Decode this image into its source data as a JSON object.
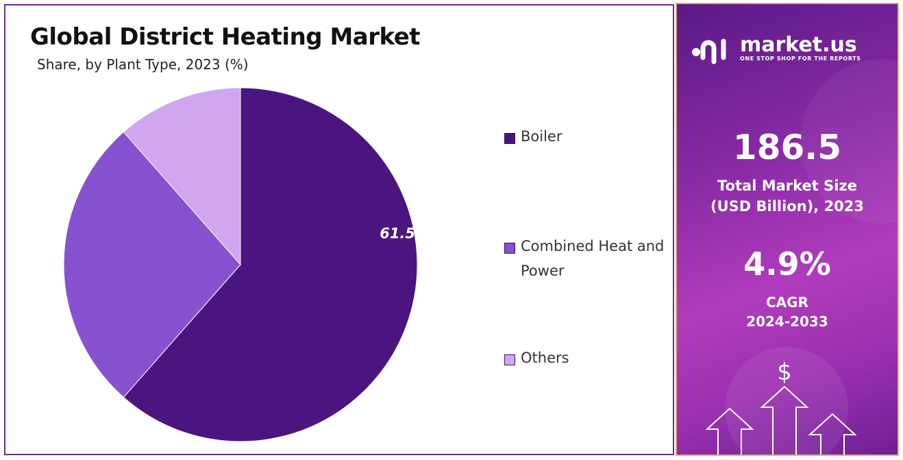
{
  "title": "Global District Heating Market",
  "subtitle": "Share, by Plant Type, 2023 (%)",
  "chart_data": {
    "type": "pie",
    "title": "Global District Heating Market",
    "subtitle": "Share, by Plant Type, 2023 (%)",
    "slices": [
      {
        "label": "Boiler",
        "value": 61.5,
        "color": "#4b1580",
        "data_label": "61.5%"
      },
      {
        "label": "Combined Heat and Power",
        "value": 27.0,
        "color": "#8752d0",
        "data_label": ""
      },
      {
        "label": "Others",
        "value": 11.5,
        "color": "#cfa6ef",
        "data_label": ""
      }
    ],
    "legend_position": "right"
  },
  "sidebar": {
    "brand_name": "market.us",
    "brand_tagline": "ONE STOP SHOP FOR THE REPORTS",
    "market_size_value": "186.5",
    "market_size_label_line1": "Total Market Size",
    "market_size_label_line2": "(USD Billion), 2023",
    "cagr_value": "4.9%",
    "cagr_label_line1": "CAGR",
    "cagr_label_line2": "2024-2033",
    "currency_symbol": "$"
  },
  "colors": {
    "frame": "#6b2d8f",
    "sidebar_border": "#e0b070"
  }
}
